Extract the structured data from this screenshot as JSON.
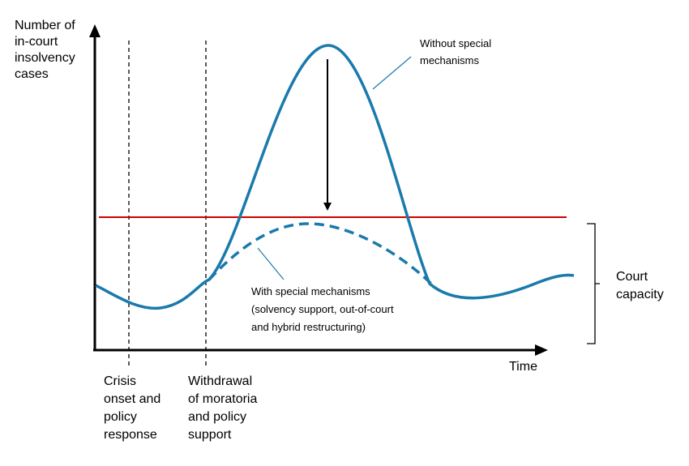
{
  "diagram": {
    "y_axis_title": [
      "Number of",
      "in-court",
      "insolvency",
      "cases"
    ],
    "x_axis_title": "Time",
    "markers": [
      {
        "label": [
          "Crisis",
          "onset and",
          "policy",
          "response"
        ]
      },
      {
        "label": [
          "Withdrawal",
          "of moratoria",
          "and policy",
          "support"
        ]
      }
    ],
    "annotations": {
      "without": [
        "Without special",
        "mechanisms"
      ],
      "with": [
        "With special mechanisms",
        "(solvency support, out-of-court",
        "and hybrid restructuring)"
      ]
    },
    "capacity_label": [
      "Court",
      "capacity"
    ],
    "colors": {
      "curve": "#1a7aac",
      "capacity_line": "#cc0000",
      "axes": "#000000"
    }
  }
}
